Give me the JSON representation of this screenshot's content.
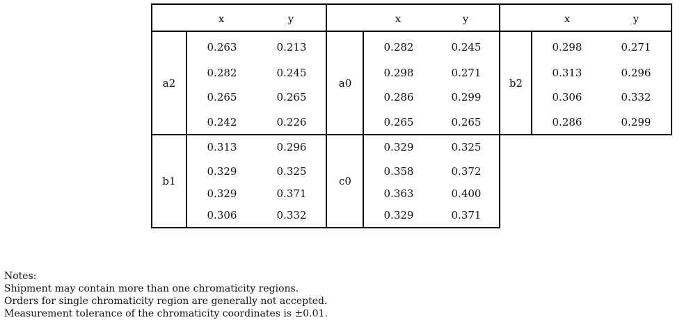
{
  "header": {
    "x": "x",
    "y": "y"
  },
  "groups": [
    {
      "label": "a2",
      "rows": [
        [
          "0.263",
          "0.213"
        ],
        [
          "0.282",
          "0.245"
        ],
        [
          "0.265",
          "0.265"
        ],
        [
          "0.242",
          "0.226"
        ]
      ]
    },
    {
      "label": "a0",
      "rows": [
        [
          "0.282",
          "0.245"
        ],
        [
          "0.298",
          "0.271"
        ],
        [
          "0.286",
          "0.299"
        ],
        [
          "0.265",
          "0.265"
        ]
      ]
    },
    {
      "label": "b2",
      "rows": [
        [
          "0.298",
          "0.271"
        ],
        [
          "0.313",
          "0.296"
        ],
        [
          "0.306",
          "0.332"
        ],
        [
          "0.286",
          "0.299"
        ]
      ]
    },
    {
      "label": "b1",
      "rows": [
        [
          "0.313",
          "0.296"
        ],
        [
          "0.329",
          "0.325"
        ],
        [
          "0.329",
          "0.371"
        ],
        [
          "0.306",
          "0.332"
        ]
      ]
    },
    {
      "label": "c0",
      "rows": [
        [
          "0.329",
          "0.325"
        ],
        [
          "0.358",
          "0.372"
        ],
        [
          "0.363",
          "0.400"
        ],
        [
          "0.329",
          "0.371"
        ]
      ]
    }
  ],
  "notes": {
    "heading": "Notes:",
    "lines": [
      "Shipment may contain more than one chromaticity regions.",
      "Orders for single chromaticity region are generally not accepted.",
      "Measurement tolerance of the chromaticity coordinates is ±0.01."
    ]
  }
}
